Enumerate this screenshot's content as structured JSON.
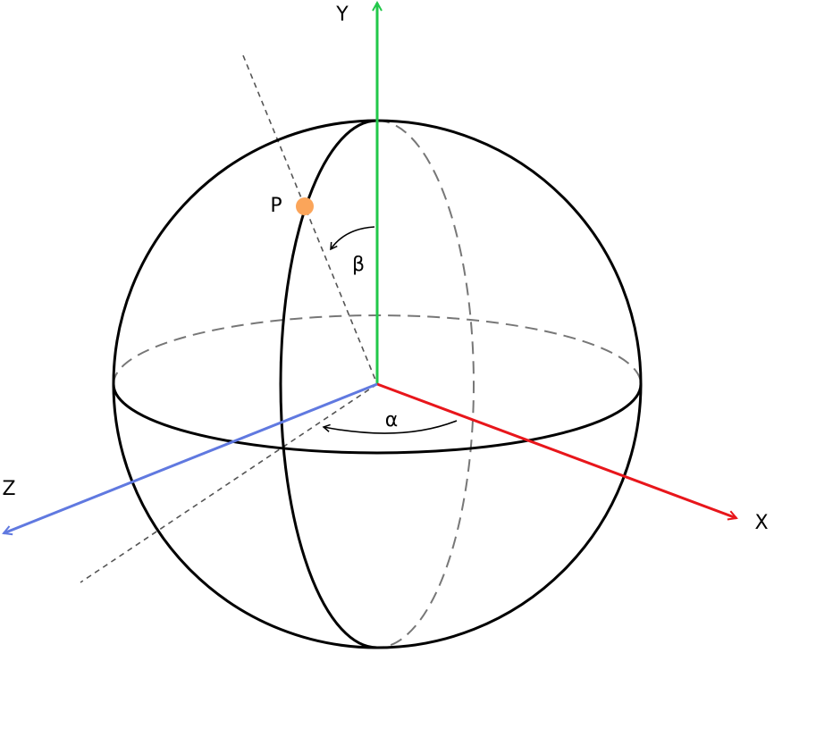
{
  "axes": [
    {
      "label": "Y"
    },
    {
      "label": "X"
    },
    {
      "label": "Z"
    }
  ],
  "point": {
    "label": "P"
  },
  "angles": [
    {
      "label": "α"
    },
    {
      "label": "β"
    }
  ]
}
